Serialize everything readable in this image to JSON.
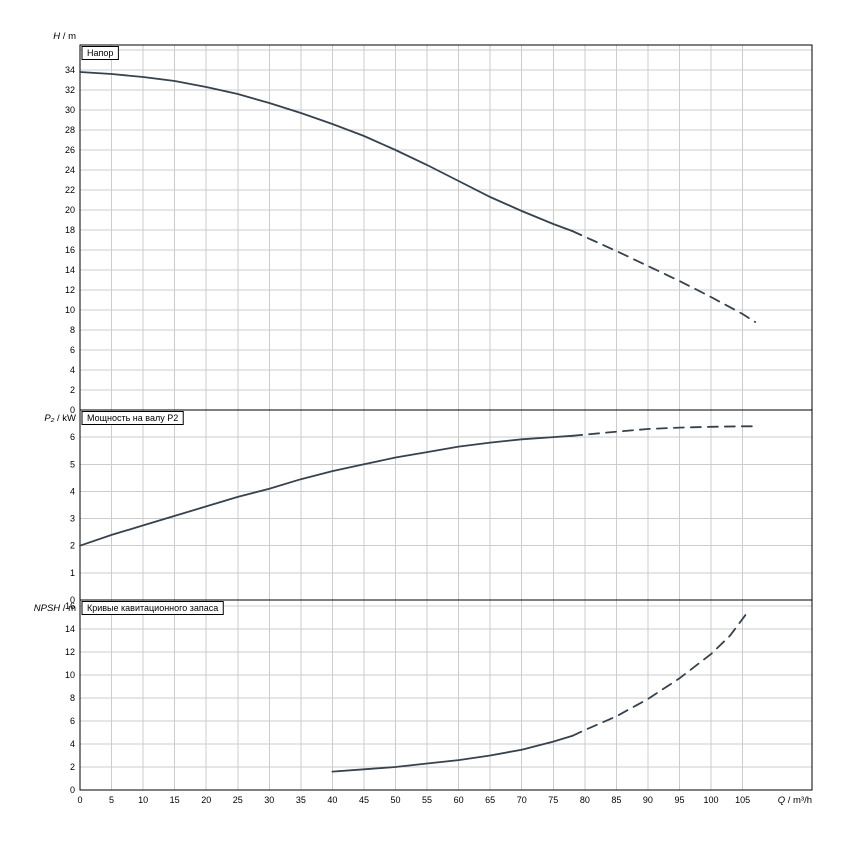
{
  "chart_data": {
    "type": "line",
    "layout": "three-stacked-panels-shared-x",
    "grid": true,
    "legend": false,
    "x_axis": {
      "label_italic": "Q",
      "label_rest": " / m³/h",
      "min": 0,
      "max": 116,
      "tick_step": 5,
      "tick_label_max": 105
    },
    "panels": [
      {
        "id": "head",
        "title": "Напор",
        "ylabel_italic": "H",
        "ylabel_rest": " / m",
        "ylim": [
          0,
          36.5
        ],
        "ytick_step": 2,
        "ytick_label_max": 34,
        "series": [
          {
            "name": "head-curve-solid",
            "style": "solid",
            "points": [
              [
                0,
                33.8
              ],
              [
                5,
                33.6
              ],
              [
                10,
                33.3
              ],
              [
                15,
                32.9
              ],
              [
                20,
                32.3
              ],
              [
                25,
                31.6
              ],
              [
                30,
                30.7
              ],
              [
                35,
                29.7
              ],
              [
                40,
                28.6
              ],
              [
                45,
                27.4
              ],
              [
                50,
                26.0
              ],
              [
                55,
                24.5
              ],
              [
                60,
                22.9
              ],
              [
                65,
                21.3
              ],
              [
                70,
                19.9
              ],
              [
                75,
                18.6
              ],
              [
                78,
                17.9
              ]
            ]
          },
          {
            "name": "head-curve-extrapolated",
            "style": "dashed",
            "points": [
              [
                78,
                17.9
              ],
              [
                85,
                15.9
              ],
              [
                90,
                14.4
              ],
              [
                95,
                12.9
              ],
              [
                100,
                11.3
              ],
              [
                105,
                9.6
              ],
              [
                107,
                8.8
              ]
            ]
          }
        ]
      },
      {
        "id": "power",
        "title": "Мощность на валу P2",
        "ylabel_italic": "P₂",
        "ylabel_rest": " / kW",
        "ylim": [
          0,
          7
        ],
        "ytick_step": 1,
        "ytick_label_max": 6,
        "series": [
          {
            "name": "power-curve-solid",
            "style": "solid",
            "points": [
              [
                0,
                2.0
              ],
              [
                5,
                2.4
              ],
              [
                10,
                2.75
              ],
              [
                15,
                3.1
              ],
              [
                20,
                3.45
              ],
              [
                25,
                3.8
              ],
              [
                30,
                4.1
              ],
              [
                35,
                4.45
              ],
              [
                40,
                4.75
              ],
              [
                45,
                5.0
              ],
              [
                50,
                5.25
              ],
              [
                55,
                5.45
              ],
              [
                60,
                5.65
              ],
              [
                65,
                5.8
              ],
              [
                70,
                5.92
              ],
              [
                75,
                6.0
              ],
              [
                78,
                6.05
              ]
            ]
          },
          {
            "name": "power-curve-extrapolated",
            "style": "dashed",
            "points": [
              [
                78,
                6.05
              ],
              [
                85,
                6.2
              ],
              [
                90,
                6.3
              ],
              [
                95,
                6.35
              ],
              [
                100,
                6.38
              ],
              [
                105,
                6.4
              ],
              [
                107,
                6.4
              ]
            ]
          }
        ]
      },
      {
        "id": "npsh",
        "title": "Кривые кавитационного запаса",
        "ylabel_italic": "NPSH",
        "ylabel_rest": " / m",
        "ylim": [
          0,
          16.5
        ],
        "ytick_step": 2,
        "ytick_label_max": 16,
        "series": [
          {
            "name": "npsh-curve-solid",
            "style": "solid",
            "points": [
              [
                40,
                1.6
              ],
              [
                45,
                1.8
              ],
              [
                50,
                2.0
              ],
              [
                55,
                2.3
              ],
              [
                60,
                2.6
              ],
              [
                65,
                3.0
              ],
              [
                70,
                3.5
              ],
              [
                75,
                4.2
              ],
              [
                78,
                4.7
              ]
            ]
          },
          {
            "name": "npsh-curve-extrapolated",
            "style": "dashed",
            "points": [
              [
                78,
                4.7
              ],
              [
                80,
                5.2
              ],
              [
                85,
                6.4
              ],
              [
                90,
                7.9
              ],
              [
                95,
                9.7
              ],
              [
                100,
                11.8
              ],
              [
                103,
                13.4
              ],
              [
                106,
                15.6
              ]
            ]
          }
        ]
      }
    ]
  },
  "colors": {
    "background": "#ffffff",
    "grid": "#cccccc",
    "frame": "#000000",
    "curve": "#36424e",
    "text": "#000000"
  }
}
